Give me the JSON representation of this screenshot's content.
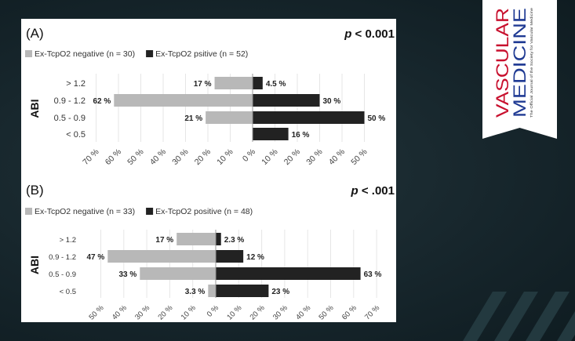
{
  "journal": {
    "name_line1": "VASCULAR",
    "name_line2": "MEDICINE",
    "tagline": "The Official Journal of the Society for Vascular Medicine",
    "colors": {
      "line1": "#c8102e",
      "line2": "#1f3a93",
      "bg": "#ffffff"
    }
  },
  "colors": {
    "negative": "#b8b8b8",
    "positive": "#222222",
    "grid": "#e6e6e6"
  },
  "chart_data": [
    {
      "panel_label": "(A)",
      "p_value_symbol": "p",
      "p_value_rest": " < 0.001",
      "type": "bar",
      "orientation": "horizontal-diverging",
      "ylabel": "ABI",
      "categories": [
        "> 1.2",
        "0.9 - 1.2",
        "0.5 - 0.9",
        "< 0.5"
      ],
      "series": [
        {
          "name": "Ex-TcpO2 negative (n = 30)",
          "values": [
            17,
            62,
            21,
            0
          ],
          "labels": [
            "17 %",
            "62 %",
            "21 %",
            ""
          ]
        },
        {
          "name": "Ex-TcpO2 psitive (n = 52)",
          "values": [
            4.5,
            30,
            50,
            16
          ],
          "labels": [
            "4.5 %",
            "30 %",
            "50 %",
            "16 %"
          ]
        }
      ],
      "ticks_left": [
        "70 %",
        "60 %",
        "50 %",
        "40 %",
        "30 %",
        "20 %",
        "10 %",
        "0 %"
      ],
      "ticks_right": [
        "10 %",
        "20 %",
        "30 %",
        "40 %",
        "50 %"
      ],
      "xlim": [
        -70,
        50
      ],
      "grid": true,
      "legend": "top-left"
    },
    {
      "panel_label": "(B)",
      "p_value_symbol": "p",
      "p_value_rest": " < .001",
      "type": "bar",
      "orientation": "horizontal-diverging",
      "ylabel": "ABI",
      "categories": [
        "> 1.2",
        "0.9 - 1.2",
        "0.5 - 0.9",
        "< 0.5"
      ],
      "series": [
        {
          "name": "Ex-TcpO2 negative (n = 33)",
          "values": [
            17,
            47,
            33,
            3.3
          ],
          "labels": [
            "17 %",
            "47 %",
            "33 %",
            "3.3 %"
          ]
        },
        {
          "name": "Ex-TcpO2 positive (n = 48)",
          "values": [
            2.3,
            12,
            63,
            23
          ],
          "labels": [
            "2.3 %",
            "12 %",
            "63 %",
            "23 %"
          ]
        }
      ],
      "ticks_left": [
        "50 %",
        "40 %",
        "30 %",
        "20 %",
        "10 %",
        "0 %"
      ],
      "ticks_right": [
        "10 %",
        "20 %",
        "30 %",
        "40 %",
        "50 %",
        "60 %",
        "70 %"
      ],
      "xlim": [
        -50,
        70
      ],
      "grid": true,
      "legend": "top-left"
    }
  ]
}
